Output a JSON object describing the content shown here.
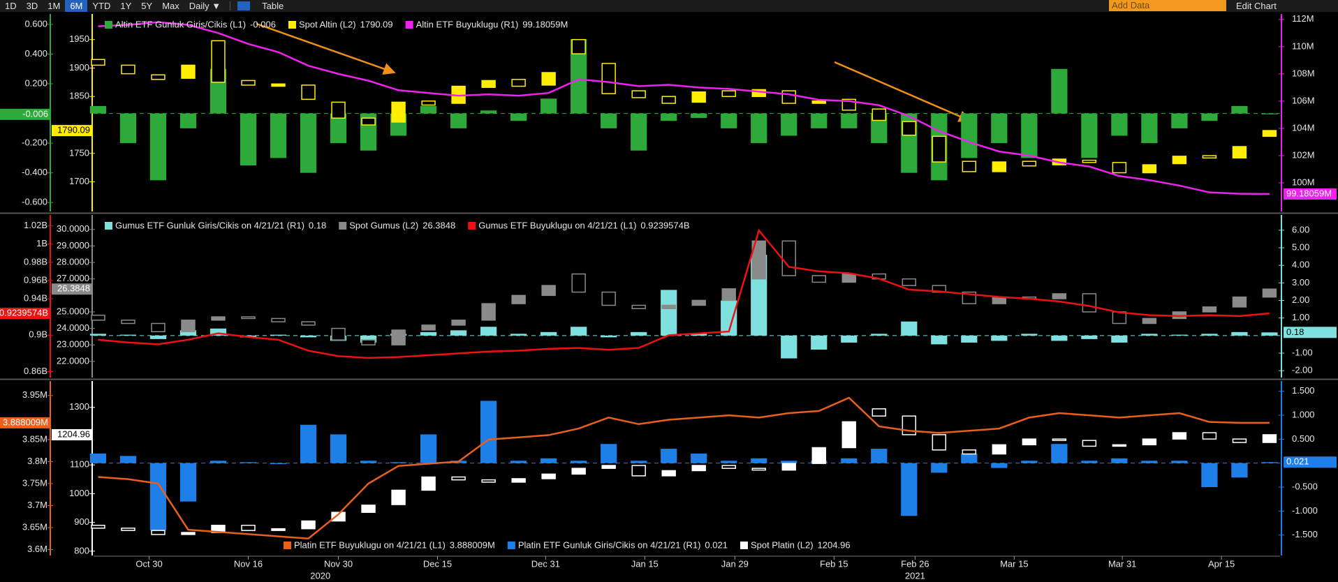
{
  "toolbar": {
    "ranges": [
      "1D",
      "3D",
      "1M",
      "6M",
      "YTD",
      "1Y",
      "5Y",
      "Max"
    ],
    "selected_index": 3,
    "frequency": "Daily ▼",
    "table": "Table",
    "add_data": "Add Data",
    "edit_chart": "Edit Chart"
  },
  "x_axis": {
    "xlim": [
      -0.15,
      39.35
    ],
    "xticks": [
      {
        "value": 1.7,
        "label": "Oct 30"
      },
      {
        "value": 5.0,
        "label": "Nov 16"
      },
      {
        "value": 8.0,
        "label": "Nov 30"
      },
      {
        "value": 11.3,
        "label": "Dec 15"
      },
      {
        "value": 14.9,
        "label": "Dec 31"
      },
      {
        "value": 18.2,
        "label": "Jan 15"
      },
      {
        "value": 21.2,
        "label": "Jan 29"
      },
      {
        "value": 24.5,
        "label": "Feb 15"
      },
      {
        "value": 27.2,
        "label": "Feb 26"
      },
      {
        "value": 30.5,
        "label": "Mar 15"
      },
      {
        "value": 34.1,
        "label": "Mar 31"
      },
      {
        "value": 37.4,
        "label": "Apr 15"
      }
    ],
    "years": [
      {
        "value": 7.4,
        "label": "2020"
      },
      {
        "value": 27.2,
        "label": "2021"
      }
    ]
  },
  "chart_data": [
    {
      "type": "combo",
      "legend": "top",
      "y_axes": [
        {
          "id": "L1",
          "side": "outer-left",
          "color": "#2eaa3a",
          "ylim": [
            -0.66,
            0.67
          ],
          "yticks": [
            {
              "value": 0.6,
              "label": "0.600"
            },
            {
              "value": 0.4,
              "label": "0.400"
            },
            {
              "value": 0.2,
              "label": "0.200"
            },
            {
              "value": -0.2,
              "label": "-0.200"
            },
            {
              "value": -0.4,
              "label": "-0.400"
            },
            {
              "value": -0.6,
              "label": "-0.600"
            }
          ]
        },
        {
          "id": "L2",
          "side": "inner-left",
          "color": "#ffee00",
          "ylim": [
            1648,
            1995
          ],
          "yticks": [
            1950,
            1900,
            1850,
            1750,
            1700
          ]
        },
        {
          "id": "R1",
          "side": "right",
          "color": "#ee22ee",
          "ylim": [
            97.9,
            112.4
          ],
          "yticks": [
            {
              "value": 112,
              "label": "112M"
            },
            {
              "value": 110,
              "label": "110M"
            },
            {
              "value": 108,
              "label": "108M"
            },
            {
              "value": 106,
              "label": "106M"
            },
            {
              "value": 104,
              "label": "104M"
            },
            {
              "value": 102,
              "label": "102M"
            },
            {
              "value": 100,
              "label": "100M"
            }
          ]
        }
      ],
      "series": [
        {
          "name": "Altin ETF Gunluk Giris/Cikis (L1)",
          "kind": "bar",
          "axis": "L1",
          "color": "#2eaa3a",
          "last_label": "-0.006",
          "values": [
            0.05,
            -0.2,
            -0.45,
            -0.1,
            0.3,
            -0.35,
            -0.3,
            -0.4,
            -0.2,
            -0.25,
            -0.15,
            0.05,
            -0.1,
            0.02,
            -0.05,
            0.1,
            0.5,
            -0.1,
            -0.25,
            -0.05,
            -0.03,
            -0.1,
            -0.2,
            -0.15,
            -0.1,
            -0.1,
            -0.2,
            -0.4,
            -0.45,
            -0.3,
            -0.2,
            -0.3,
            0.3,
            -0.3,
            -0.15,
            -0.2,
            -0.1,
            -0.05,
            0.05,
            -0.006
          ]
        },
        {
          "name": "Spot Altin (L2)",
          "kind": "candlestick",
          "axis": "L2",
          "color": "#ffee00",
          "last_label": "1790.09",
          "open": [
            1915,
            1905,
            1888,
            1882,
            1948,
            1878,
            1868,
            1870,
            1840,
            1812,
            1805,
            1842,
            1838,
            1866,
            1880,
            1870,
            1950,
            1908,
            1860,
            1850,
            1840,
            1860,
            1850,
            1860,
            1838,
            1845,
            1828,
            1806,
            1780,
            1736,
            1718,
            1736,
            1730,
            1738,
            1734,
            1716,
            1732,
            1746,
            1742,
            1780
          ],
          "close": [
            1905,
            1890,
            1880,
            1905,
            1875,
            1870,
            1872,
            1845,
            1812,
            1800,
            1840,
            1835,
            1868,
            1878,
            1868,
            1892,
            1925,
            1855,
            1848,
            1838,
            1858,
            1850,
            1862,
            1838,
            1842,
            1826,
            1808,
            1782,
            1735,
            1718,
            1735,
            1728,
            1740,
            1734,
            1716,
            1730,
            1745,
            1742,
            1762,
            1790.09
          ]
        },
        {
          "name": "Altin ETF Buyuklugu (R1)",
          "kind": "line",
          "axis": "R1",
          "color": "#ee22ee",
          "last_label": "99.18059M",
          "values": [
            111.5,
            111.6,
            111.8,
            111.6,
            111.0,
            110.2,
            109.6,
            108.6,
            108.0,
            107.5,
            106.8,
            106.6,
            106.4,
            106.5,
            106.4,
            106.6,
            107.6,
            107.4,
            107.1,
            107.2,
            107.0,
            106.9,
            106.7,
            106.5,
            106.1,
            106.0,
            105.7,
            104.9,
            103.8,
            103.0,
            102.3,
            102.0,
            101.5,
            101.2,
            100.5,
            100.2,
            99.8,
            99.3,
            99.2,
            99.18059
          ]
        }
      ]
    },
    {
      "type": "combo",
      "legend": "top",
      "y_axes": [
        {
          "id": "L1",
          "side": "outer-left",
          "color": "#ee1111",
          "ylim": [
            0.8535,
            1.032
          ],
          "yticks": [
            {
              "value": 1.02,
              "label": "1.02B"
            },
            {
              "value": 1,
              "label": "1B"
            },
            {
              "value": 0.98,
              "label": "0.98B"
            },
            {
              "value": 0.96,
              "label": "0.96B"
            },
            {
              "value": 0.94,
              "label": "0.94B"
            },
            {
              "value": 0.9,
              "label": "0.9B"
            },
            {
              "value": 0.86,
              "label": "0.86B"
            }
          ]
        },
        {
          "id": "L2",
          "side": "inner-left",
          "color": "#8a8a8a",
          "ylim": [
            21.02,
            30.88
          ],
          "yticks": [
            {
              "value": 30,
              "label": "30.0000"
            },
            {
              "value": 29,
              "label": "29.0000"
            },
            {
              "value": 28,
              "label": "28.0000"
            },
            {
              "value": 27,
              "label": "27.0000"
            },
            {
              "value": 25,
              "label": "25.0000"
            },
            {
              "value": 24,
              "label": "24.0000"
            },
            {
              "value": 23,
              "label": "23.0000"
            },
            {
              "value": 22,
              "label": "22.0000"
            }
          ]
        },
        {
          "id": "R1",
          "side": "right",
          "color": "#7fe0e0",
          "ylim": [
            -2.39,
            6.87
          ],
          "yticks": [
            {
              "value": 6,
              "label": "6.00"
            },
            {
              "value": 5,
              "label": "5.00"
            },
            {
              "value": 4,
              "label": "4.00"
            },
            {
              "value": 3,
              "label": "3.00"
            },
            {
              "value": 2,
              "label": "2.00"
            },
            {
              "value": 1,
              "label": "1.00"
            },
            {
              "value": -1,
              "label": "-1.00"
            },
            {
              "value": -2,
              "label": "-2.00"
            }
          ]
        }
      ],
      "series": [
        {
          "name": "Gumus ETF Gunluk Giris/Cikis on 4/21/21 (R1)",
          "kind": "bar",
          "axis": "R1",
          "color": "#7fe0e0",
          "last_label": "0.18",
          "values": [
            0.1,
            0.05,
            -0.2,
            0.3,
            0.4,
            -0.1,
            0.05,
            -0.1,
            -0.3,
            -0.4,
            0.1,
            0.2,
            0.3,
            0.5,
            0.1,
            0.2,
            0.5,
            -0.1,
            0.2,
            2.6,
            0.1,
            2.0,
            4.6,
            -1.3,
            -0.8,
            -0.4,
            0.1,
            0.8,
            -0.5,
            -0.4,
            -0.3,
            0.1,
            -0.3,
            -0.2,
            -0.4,
            0.1,
            0.05,
            0.1,
            0.2,
            0.18
          ]
        },
        {
          "name": "Spot Gumus (L2)",
          "kind": "candlestick",
          "axis": "L2",
          "color": "#8a8a8a",
          "last_label": "26.3848",
          "open": [
            24.8,
            24.5,
            24.3,
            23.8,
            24.5,
            24.7,
            24.6,
            24.4,
            24.0,
            23.3,
            23.0,
            23.9,
            24.2,
            24.5,
            25.5,
            26.0,
            27.3,
            26.2,
            25.4,
            25.2,
            25.4,
            25.7,
            27.0,
            29.3,
            27.2,
            26.8,
            27.3,
            27.0,
            26.6,
            26.2,
            25.5,
            25.9,
            25.8,
            26.1,
            25.0,
            24.3,
            24.6,
            25.0,
            25.3,
            25.9
          ],
          "close": [
            24.5,
            24.3,
            23.8,
            24.5,
            24.7,
            24.6,
            24.4,
            24.2,
            23.3,
            23.0,
            23.9,
            24.2,
            24.5,
            25.5,
            26.0,
            26.6,
            26.2,
            25.4,
            25.2,
            25.4,
            25.7,
            26.4,
            29.3,
            27.2,
            26.8,
            27.3,
            27.0,
            26.6,
            26.2,
            25.5,
            25.9,
            25.8,
            26.1,
            25.0,
            24.3,
            24.6,
            25.0,
            25.3,
            25.9,
            26.3848
          ]
        },
        {
          "name": "Gumus ETF Buyuklugu on 4/21/21 (L1)",
          "kind": "line",
          "axis": "L1",
          "color": "#ee1111",
          "last_label": "0.9239574B",
          "values": [
            0.895,
            0.892,
            0.89,
            0.895,
            0.902,
            0.898,
            0.895,
            0.883,
            0.877,
            0.875,
            0.876,
            0.878,
            0.88,
            0.882,
            0.883,
            0.885,
            0.886,
            0.884,
            0.886,
            0.9,
            0.902,
            0.904,
            1.015,
            0.975,
            0.97,
            0.968,
            0.962,
            0.95,
            0.948,
            0.945,
            0.942,
            0.94,
            0.937,
            0.932,
            0.925,
            0.922,
            0.921,
            0.922,
            0.921,
            0.9239574
          ]
        }
      ]
    },
    {
      "type": "combo",
      "legend": "bottom",
      "y_axes": [
        {
          "id": "L1",
          "side": "outer-left",
          "color": "#e8601c",
          "ylim": [
            3.5865,
            3.983
          ],
          "yticks": [
            {
              "value": 3.95,
              "label": "3.95M"
            },
            {
              "value": 3.85,
              "label": "3.85M"
            },
            {
              "value": 3.8,
              "label": "3.8M"
            },
            {
              "value": 3.75,
              "label": "3.75M"
            },
            {
              "value": 3.7,
              "label": "3.7M"
            },
            {
              "value": 3.65,
              "label": "3.65M"
            },
            {
              "value": 3.6,
              "label": "3.6M"
            }
          ]
        },
        {
          "id": "L2",
          "side": "inner-left",
          "color": "#ffffff",
          "ylim": [
            785,
            1391.7
          ],
          "yticks": [
            1300,
            1100,
            1000,
            900,
            800
          ]
        },
        {
          "id": "R1",
          "side": "right",
          "color": "#1f7fe8",
          "ylim": [
            -1.926,
            1.713
          ],
          "yticks": [
            {
              "value": 1.5,
              "label": "1.500"
            },
            {
              "value": 1,
              "label": "1.000"
            },
            {
              "value": 0.5,
              "label": "0.500"
            },
            {
              "value": -0.5,
              "label": "-0.500"
            },
            {
              "value": -1,
              "label": "-1.000"
            },
            {
              "value": -1.5,
              "label": "-1.500"
            }
          ]
        }
      ],
      "series": [
        {
          "name": "Platin ETF Buyuklugu on 4/21/21 (L1)",
          "kind": "line",
          "axis": "L1",
          "color": "#e8601c",
          "last_label": "3.888009M",
          "values": [
            3.765,
            3.76,
            3.75,
            3.645,
            3.64,
            3.635,
            3.63,
            3.625,
            3.68,
            3.75,
            3.79,
            3.795,
            3.8,
            3.85,
            3.855,
            3.86,
            3.875,
            3.9,
            3.885,
            3.895,
            3.9,
            3.905,
            3.9,
            3.91,
            3.915,
            3.945,
            3.88,
            3.87,
            3.865,
            3.87,
            3.875,
            3.9,
            3.91,
            3.905,
            3.9,
            3.905,
            3.91,
            3.89,
            3.888,
            3.888009
          ]
        },
        {
          "name": "Platin ETF Gunluk Giris/Cikis on 4/21/21 (R1)",
          "kind": "bar",
          "axis": "R1",
          "color": "#1f7fe8",
          "last_label": "0.021",
          "values": [
            0.2,
            0.15,
            -1.4,
            -0.8,
            0.05,
            0.02,
            -0.02,
            0.8,
            0.6,
            0.05,
            0.02,
            0.6,
            0.05,
            1.3,
            0.05,
            0.1,
            0.05,
            0.4,
            0.05,
            0.3,
            0.2,
            0.05,
            0.1,
            0.05,
            0.05,
            0.1,
            0.3,
            -1.1,
            -0.2,
            0.2,
            -0.1,
            0.05,
            0.4,
            0.05,
            0.1,
            0.05,
            0.05,
            -0.5,
            -0.3,
            0.021
          ]
        },
        {
          "name": "Spot Platin (L2)",
          "kind": "candlestick",
          "axis": "L2",
          "color": "#ffffff",
          "last_label": "1204.96",
          "open": [
            890,
            880,
            872,
            858,
            865,
            890,
            872,
            878,
            905,
            935,
            962,
            1012,
            1058,
            1048,
            1040,
            1052,
            1068,
            1088,
            1098,
            1062,
            1080,
            1098,
            1088,
            1082,
            1105,
            1160,
            1295,
            1270,
            1205,
            1152,
            1138,
            1170,
            1190,
            1185,
            1165,
            1170,
            1190,
            1212,
            1190,
            1178
          ],
          "close": [
            880,
            872,
            858,
            865,
            890,
            872,
            878,
            905,
            935,
            960,
            1012,
            1058,
            1048,
            1040,
            1052,
            1068,
            1088,
            1098,
            1062,
            1080,
            1098,
            1088,
            1082,
            1105,
            1160,
            1250,
            1270,
            1205,
            1152,
            1138,
            1170,
            1190,
            1185,
            1165,
            1170,
            1190,
            1212,
            1190,
            1178,
            1204.96
          ]
        }
      ]
    }
  ]
}
